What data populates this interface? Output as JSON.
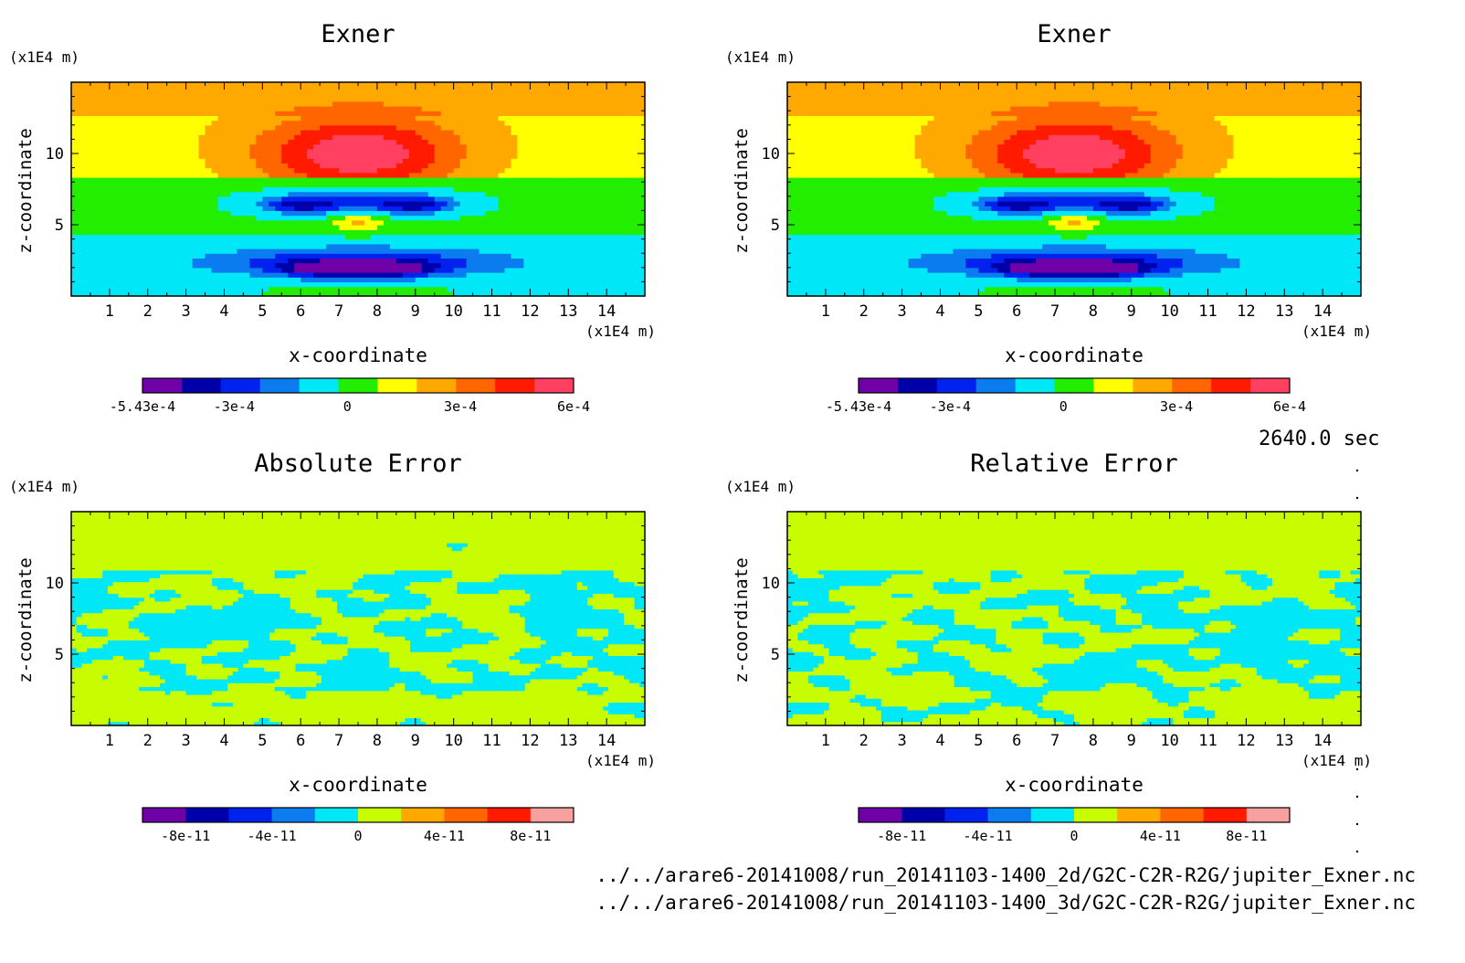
{
  "time_label": "2640.0 sec",
  "file_paths": [
    "../../arare6-20141008/run_20141103-1400_2d/G2C-C2R-R2G/jupiter_Exner.nc",
    "../../arare6-20141008/run_20141103-1400_3d/G2C-C2R-R2G/jupiter_Exner.nc"
  ],
  "colors": {
    "exner_scale": [
      "#7000a8",
      "#0000aa",
      "#0022ee",
      "#0a7cf0",
      "#00e8f8",
      "#22ee00",
      "#ffff00",
      "#ffa800",
      "#ff6600",
      "#ff1a00",
      "#ff4060"
    ],
    "error_scale": [
      "#7000a8",
      "#0000aa",
      "#0022ee",
      "#0a7cf0",
      "#00e8f8",
      "#c8fc00",
      "#ffa800",
      "#ff6600",
      "#ff1a00",
      "#f8a0a0"
    ]
  },
  "chart_data": [
    {
      "type": "heatmap",
      "title": "Exner",
      "xlabel": "x-coordinate",
      "ylabel": "z-coordinate",
      "x_unit": "(x1E4 m)",
      "y_unit": "(x1E4 m)",
      "xlim": [
        0,
        15
      ],
      "ylim": [
        0,
        15
      ],
      "xticks": [
        1,
        2,
        3,
        4,
        5,
        6,
        7,
        8,
        9,
        10,
        11,
        12,
        13,
        14
      ],
      "yticks": [
        5,
        10
      ],
      "field": "exner",
      "colorbar": {
        "labels": [
          "-5.43e-4",
          "-3e-4",
          "0",
          "3e-4",
          "6e-4"
        ],
        "label_positions": [
          -0.000543,
          -0.0003,
          0,
          0.0003,
          0.0006
        ],
        "range": [
          -0.000543,
          0.0006
        ],
        "bins": 11
      }
    },
    {
      "type": "heatmap",
      "title": "Exner",
      "xlabel": "x-coordinate",
      "ylabel": "z-coordinate",
      "x_unit": "(x1E4 m)",
      "y_unit": "(x1E4 m)",
      "xlim": [
        0,
        15
      ],
      "ylim": [
        0,
        15
      ],
      "xticks": [
        1,
        2,
        3,
        4,
        5,
        6,
        7,
        8,
        9,
        10,
        11,
        12,
        13,
        14
      ],
      "yticks": [
        5,
        10
      ],
      "field": "exner",
      "colorbar": {
        "labels": [
          "-5.43e-4",
          "-3e-4",
          "0",
          "3e-4",
          "6e-4"
        ],
        "label_positions": [
          -0.000543,
          -0.0003,
          0,
          0.0003,
          0.0006
        ],
        "range": [
          -0.000543,
          0.0006
        ],
        "bins": 11
      }
    },
    {
      "type": "heatmap",
      "title": "Absolute Error",
      "xlabel": "x-coordinate",
      "ylabel": "z-coordinate",
      "x_unit": "(x1E4 m)",
      "y_unit": "(x1E4 m)",
      "xlim": [
        0,
        15
      ],
      "ylim": [
        0,
        15
      ],
      "xticks": [
        1,
        2,
        3,
        4,
        5,
        6,
        7,
        8,
        9,
        10,
        11,
        12,
        13,
        14
      ],
      "yticks": [
        5,
        10
      ],
      "field": "noise",
      "seed": 7,
      "colorbar": {
        "labels": [
          "-8e-11",
          "-4e-11",
          "0",
          "4e-11",
          "8e-11"
        ],
        "label_positions": [
          -8e-11,
          -4e-11,
          0,
          4e-11,
          8e-11
        ],
        "range": [
          -1e-10,
          1e-10
        ],
        "bins": 10
      }
    },
    {
      "type": "heatmap",
      "title": "Relative Error",
      "xlabel": "x-coordinate",
      "ylabel": "z-coordinate",
      "x_unit": "(x1E4 m)",
      "y_unit": "(x1E4 m)",
      "xlim": [
        0,
        15
      ],
      "ylim": [
        0,
        15
      ],
      "xticks": [
        1,
        2,
        3,
        4,
        5,
        6,
        7,
        8,
        9,
        10,
        11,
        12,
        13,
        14
      ],
      "yticks": [
        5,
        10
      ],
      "field": "noise",
      "seed": 19,
      "colorbar": {
        "labels": [
          "-8e-11",
          "-4e-11",
          "0",
          "4e-11",
          "8e-11"
        ],
        "label_positions": [
          -8e-11,
          -4e-11,
          0,
          4e-11,
          8e-11
        ],
        "range": [
          -1e-10,
          1e-10
        ],
        "bins": 10
      }
    }
  ]
}
